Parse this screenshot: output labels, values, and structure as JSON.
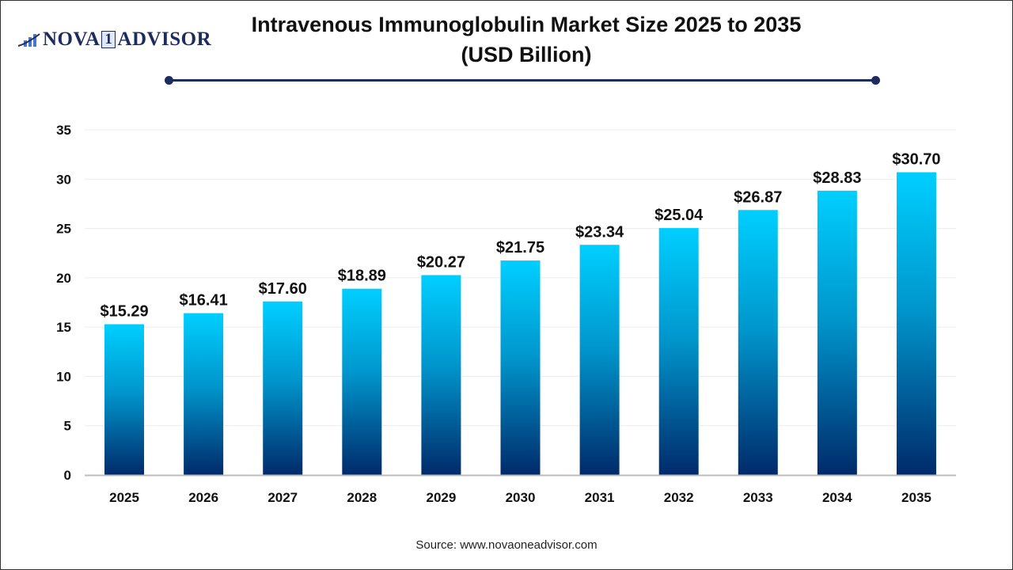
{
  "logo": {
    "text_left": "NOVA",
    "text_one": "1",
    "text_right": "ADVISOR"
  },
  "source": "Source: www.novaoneadvisor.com",
  "colors": {
    "bar_top": "#00cfff",
    "bar_bottom": "#002a6a",
    "accent": "#1d2b5e"
  },
  "chart_data": {
    "type": "bar",
    "title": "Intravenous Immunoglobulin Market Size 2025 to 2035",
    "subtitle": "(USD Billion)",
    "xlabel": "",
    "ylabel": "",
    "categories": [
      "2025",
      "2026",
      "2027",
      "2028",
      "2029",
      "2030",
      "2031",
      "2032",
      "2033",
      "2034",
      "2035"
    ],
    "values": [
      15.29,
      16.41,
      17.6,
      18.89,
      20.27,
      21.75,
      23.34,
      25.04,
      26.87,
      28.83,
      30.7
    ],
    "data_labels": [
      "$15.29",
      "$16.41",
      "$17.60",
      "$18.89",
      "$20.27",
      "$21.75",
      "$23.34",
      "$25.04",
      "$26.87",
      "$28.83",
      "$30.70"
    ],
    "yticks": [
      0,
      5,
      10,
      15,
      20,
      25,
      30,
      35
    ],
    "ylim": [
      0,
      35
    ],
    "grid": true
  }
}
